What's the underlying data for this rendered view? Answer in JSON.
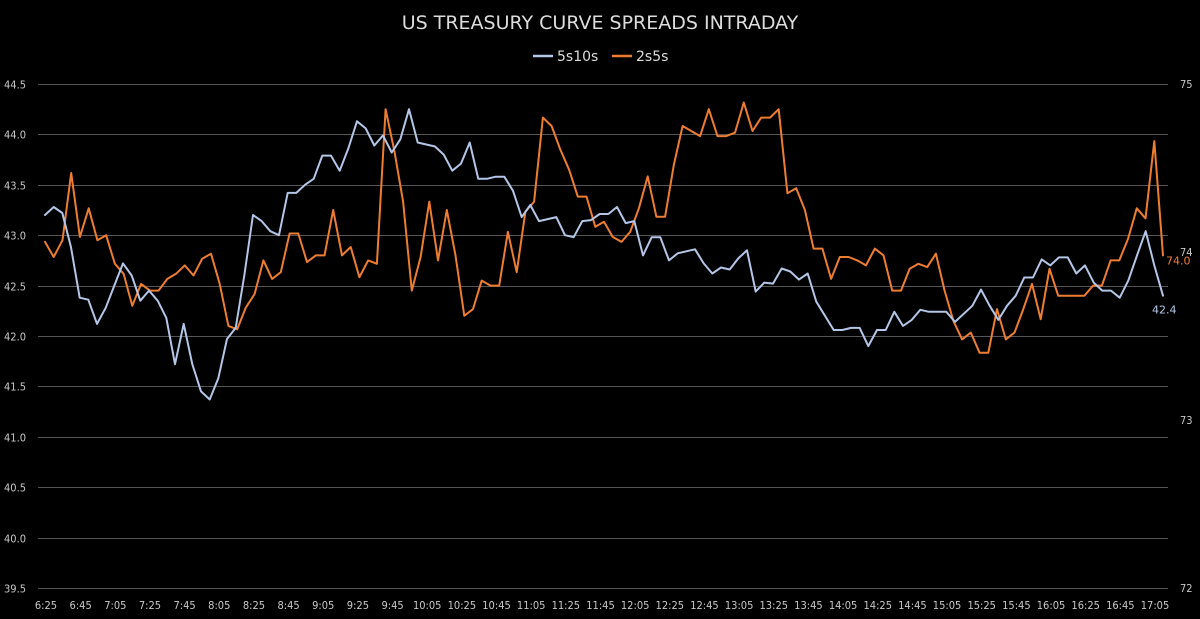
{
  "chart_data": {
    "type": "line",
    "title": "US TREASURY CURVE SPREADS INTRADAY",
    "legend_position": "top-center",
    "grid": true,
    "x_tick_labels": [
      "6:25",
      "6:45",
      "7:05",
      "7:25",
      "7:45",
      "8:05",
      "8:25",
      "8:45",
      "9:05",
      "9:25",
      "9:45",
      "10:05",
      "10:25",
      "10:45",
      "11:05",
      "11:25",
      "11:45",
      "12:05",
      "12:25",
      "12:45",
      "13:05",
      "13:25",
      "13:45",
      "14:05",
      "14:25",
      "14:45",
      "15:05",
      "15:25",
      "15:45",
      "16:05",
      "16:25",
      "16:45",
      "17:05"
    ],
    "y_left": {
      "ticks": [
        "39.5",
        "40.0",
        "40.5",
        "41.0",
        "41.5",
        "42.0",
        "42.5",
        "43.0",
        "43.5",
        "44.0",
        "44.5"
      ],
      "ylim": [
        39.5,
        44.5
      ]
    },
    "y_right": {
      "ticks": [
        "72",
        "73",
        "74",
        "75"
      ],
      "ylim": [
        72,
        75
      ]
    },
    "series": [
      {
        "name": "5s10s",
        "axis": "left",
        "color": "#b4c6e7",
        "end_label": "42.4",
        "values": [
          43.2,
          43.28,
          43.22,
          42.88,
          42.38,
          42.36,
          42.12,
          42.28,
          42.5,
          42.72,
          42.6,
          42.35,
          42.45,
          42.35,
          42.18,
          41.72,
          42.12,
          41.72,
          41.45,
          41.37,
          41.58,
          41.97,
          42.08,
          42.6,
          43.2,
          43.14,
          43.04,
          43.0,
          43.42,
          43.42,
          43.5,
          43.56,
          43.79,
          43.79,
          43.64,
          43.86,
          44.13,
          44.06,
          43.89,
          43.99,
          43.82,
          43.95,
          44.25,
          43.92,
          43.9,
          43.88,
          43.8,
          43.64,
          43.71,
          43.92,
          43.56,
          43.56,
          43.58,
          43.58,
          43.44,
          43.18,
          43.3,
          43.14,
          43.16,
          43.18,
          43.0,
          42.98,
          43.14,
          43.15,
          43.21,
          43.21,
          43.28,
          43.12,
          43.14,
          42.8,
          42.98,
          42.98,
          42.75,
          42.82,
          42.84,
          42.86,
          42.72,
          42.62,
          42.68,
          42.66,
          42.77,
          42.85,
          42.44,
          42.53,
          42.52,
          42.67,
          42.64,
          42.56,
          42.62,
          42.34,
          42.2,
          42.06,
          42.06,
          42.08,
          42.08,
          41.9,
          42.06,
          42.06,
          42.24,
          42.1,
          42.16,
          42.26,
          42.24,
          42.24,
          42.24,
          42.14,
          42.22,
          42.3,
          42.46,
          42.3,
          42.16,
          42.3,
          42.4,
          42.58,
          42.58,
          42.76,
          42.7,
          42.78,
          42.78,
          42.62,
          42.7,
          42.53,
          42.45,
          42.45,
          42.38,
          42.55,
          42.8,
          43.04,
          42.7,
          42.4
        ]
      },
      {
        "name": "2s5s",
        "axis": "right",
        "color": "#ed7d31",
        "end_label": "74.0",
        "values": [
          74.06,
          73.97,
          74.07,
          74.47,
          74.09,
          74.26,
          74.07,
          74.1,
          73.93,
          73.87,
          73.68,
          73.81,
          73.77,
          73.77,
          73.84,
          73.87,
          73.92,
          73.86,
          73.96,
          73.99,
          73.81,
          73.56,
          73.54,
          73.67,
          73.75,
          73.95,
          73.84,
          73.88,
          74.11,
          74.11,
          73.94,
          73.98,
          73.98,
          74.25,
          73.98,
          74.03,
          73.85,
          73.95,
          73.93,
          74.85,
          74.6,
          74.3,
          73.77,
          73.97,
          74.3,
          73.95,
          74.25,
          73.98,
          73.62,
          73.66,
          73.83,
          73.8,
          73.8,
          74.12,
          73.88,
          74.24,
          74.3,
          74.8,
          74.75,
          74.61,
          74.49,
          74.33,
          74.33,
          74.15,
          74.18,
          74.09,
          74.06,
          74.12,
          74.26,
          74.45,
          74.21,
          74.21,
          74.52,
          74.75,
          74.72,
          74.69,
          74.85,
          74.69,
          74.69,
          74.71,
          74.89,
          74.72,
          74.8,
          74.8,
          74.85,
          74.35,
          74.38,
          74.25,
          74.02,
          74.02,
          73.84,
          73.97,
          73.97,
          73.95,
          73.92,
          74.02,
          73.98,
          73.77,
          73.77,
          73.9,
          73.93,
          73.91,
          73.99,
          73.77,
          73.59,
          73.48,
          73.52,
          73.4,
          73.4,
          73.66,
          73.48,
          73.52,
          73.66,
          73.81,
          73.6,
          73.9,
          73.74,
          73.74,
          73.74,
          73.74,
          73.8,
          73.8,
          73.95,
          73.95,
          74.08,
          74.26,
          74.2,
          74.66,
          73.98
        ]
      }
    ]
  }
}
